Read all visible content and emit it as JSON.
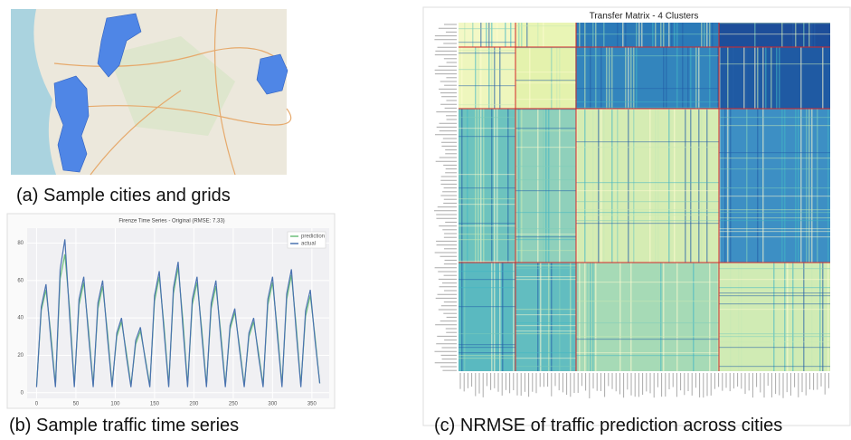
{
  "captions": {
    "a": "(a) Sample cities and grids",
    "b": "(b) Sample traffic time series",
    "c": "(c) NRMSE of traffic prediction across cities"
  },
  "chart_data": [
    {
      "type": "line",
      "title": "Firenze Time Series - Original (RMSE: 7.33)",
      "x": [
        0,
        6,
        12,
        18,
        24,
        30,
        36,
        42,
        48,
        54,
        60,
        66,
        72,
        78,
        84,
        90,
        96,
        102,
        108,
        114,
        120,
        126,
        132,
        138,
        144,
        150,
        156,
        162,
        168,
        174,
        180,
        186,
        192,
        198,
        204,
        210,
        216,
        222,
        228,
        234,
        240,
        246,
        252,
        258,
        264,
        270,
        276,
        282,
        288,
        294,
        300,
        306,
        312,
        318,
        324,
        330,
        336,
        342,
        348,
        354,
        360
      ],
      "series": [
        {
          "name": "prediction",
          "color": "#6dbf7b",
          "values": [
            4,
            44,
            55,
            32,
            4,
            61,
            74,
            45,
            4,
            47,
            59,
            34,
            4,
            45,
            57,
            33,
            4,
            30,
            38,
            22,
            4,
            26,
            33,
            19,
            4,
            49,
            62,
            36,
            4,
            53,
            67,
            39,
            4,
            47,
            59,
            34,
            4,
            45,
            57,
            33,
            4,
            34,
            43,
            25,
            4,
            30,
            38,
            22,
            4,
            47,
            59,
            34,
            4,
            50,
            63,
            36,
            4,
            41,
            52,
            30,
            5
          ]
        },
        {
          "name": "actual",
          "color": "#4a72b0",
          "values": [
            3,
            46,
            58,
            29,
            3,
            66,
            82,
            41,
            3,
            50,
            62,
            31,
            3,
            48,
            60,
            30,
            3,
            32,
            40,
            20,
            3,
            28,
            35,
            18,
            3,
            52,
            65,
            33,
            3,
            56,
            70,
            35,
            3,
            50,
            62,
            31,
            3,
            48,
            60,
            30,
            3,
            36,
            45,
            23,
            3,
            32,
            40,
            20,
            3,
            50,
            62,
            31,
            3,
            53,
            66,
            33,
            3,
            44,
            55,
            28,
            5
          ]
        }
      ],
      "xlim": [
        -12,
        372
      ],
      "ylim": [
        -3,
        88
      ],
      "xticks": [
        0,
        50,
        100,
        150,
        200,
        250,
        300,
        350
      ],
      "yticks": [
        0,
        20,
        40,
        60,
        80
      ],
      "grid": true,
      "legend": "upper right"
    },
    {
      "type": "heatmap",
      "title": "Transfer Matrix - 4 Clusters"
    }
  ]
}
